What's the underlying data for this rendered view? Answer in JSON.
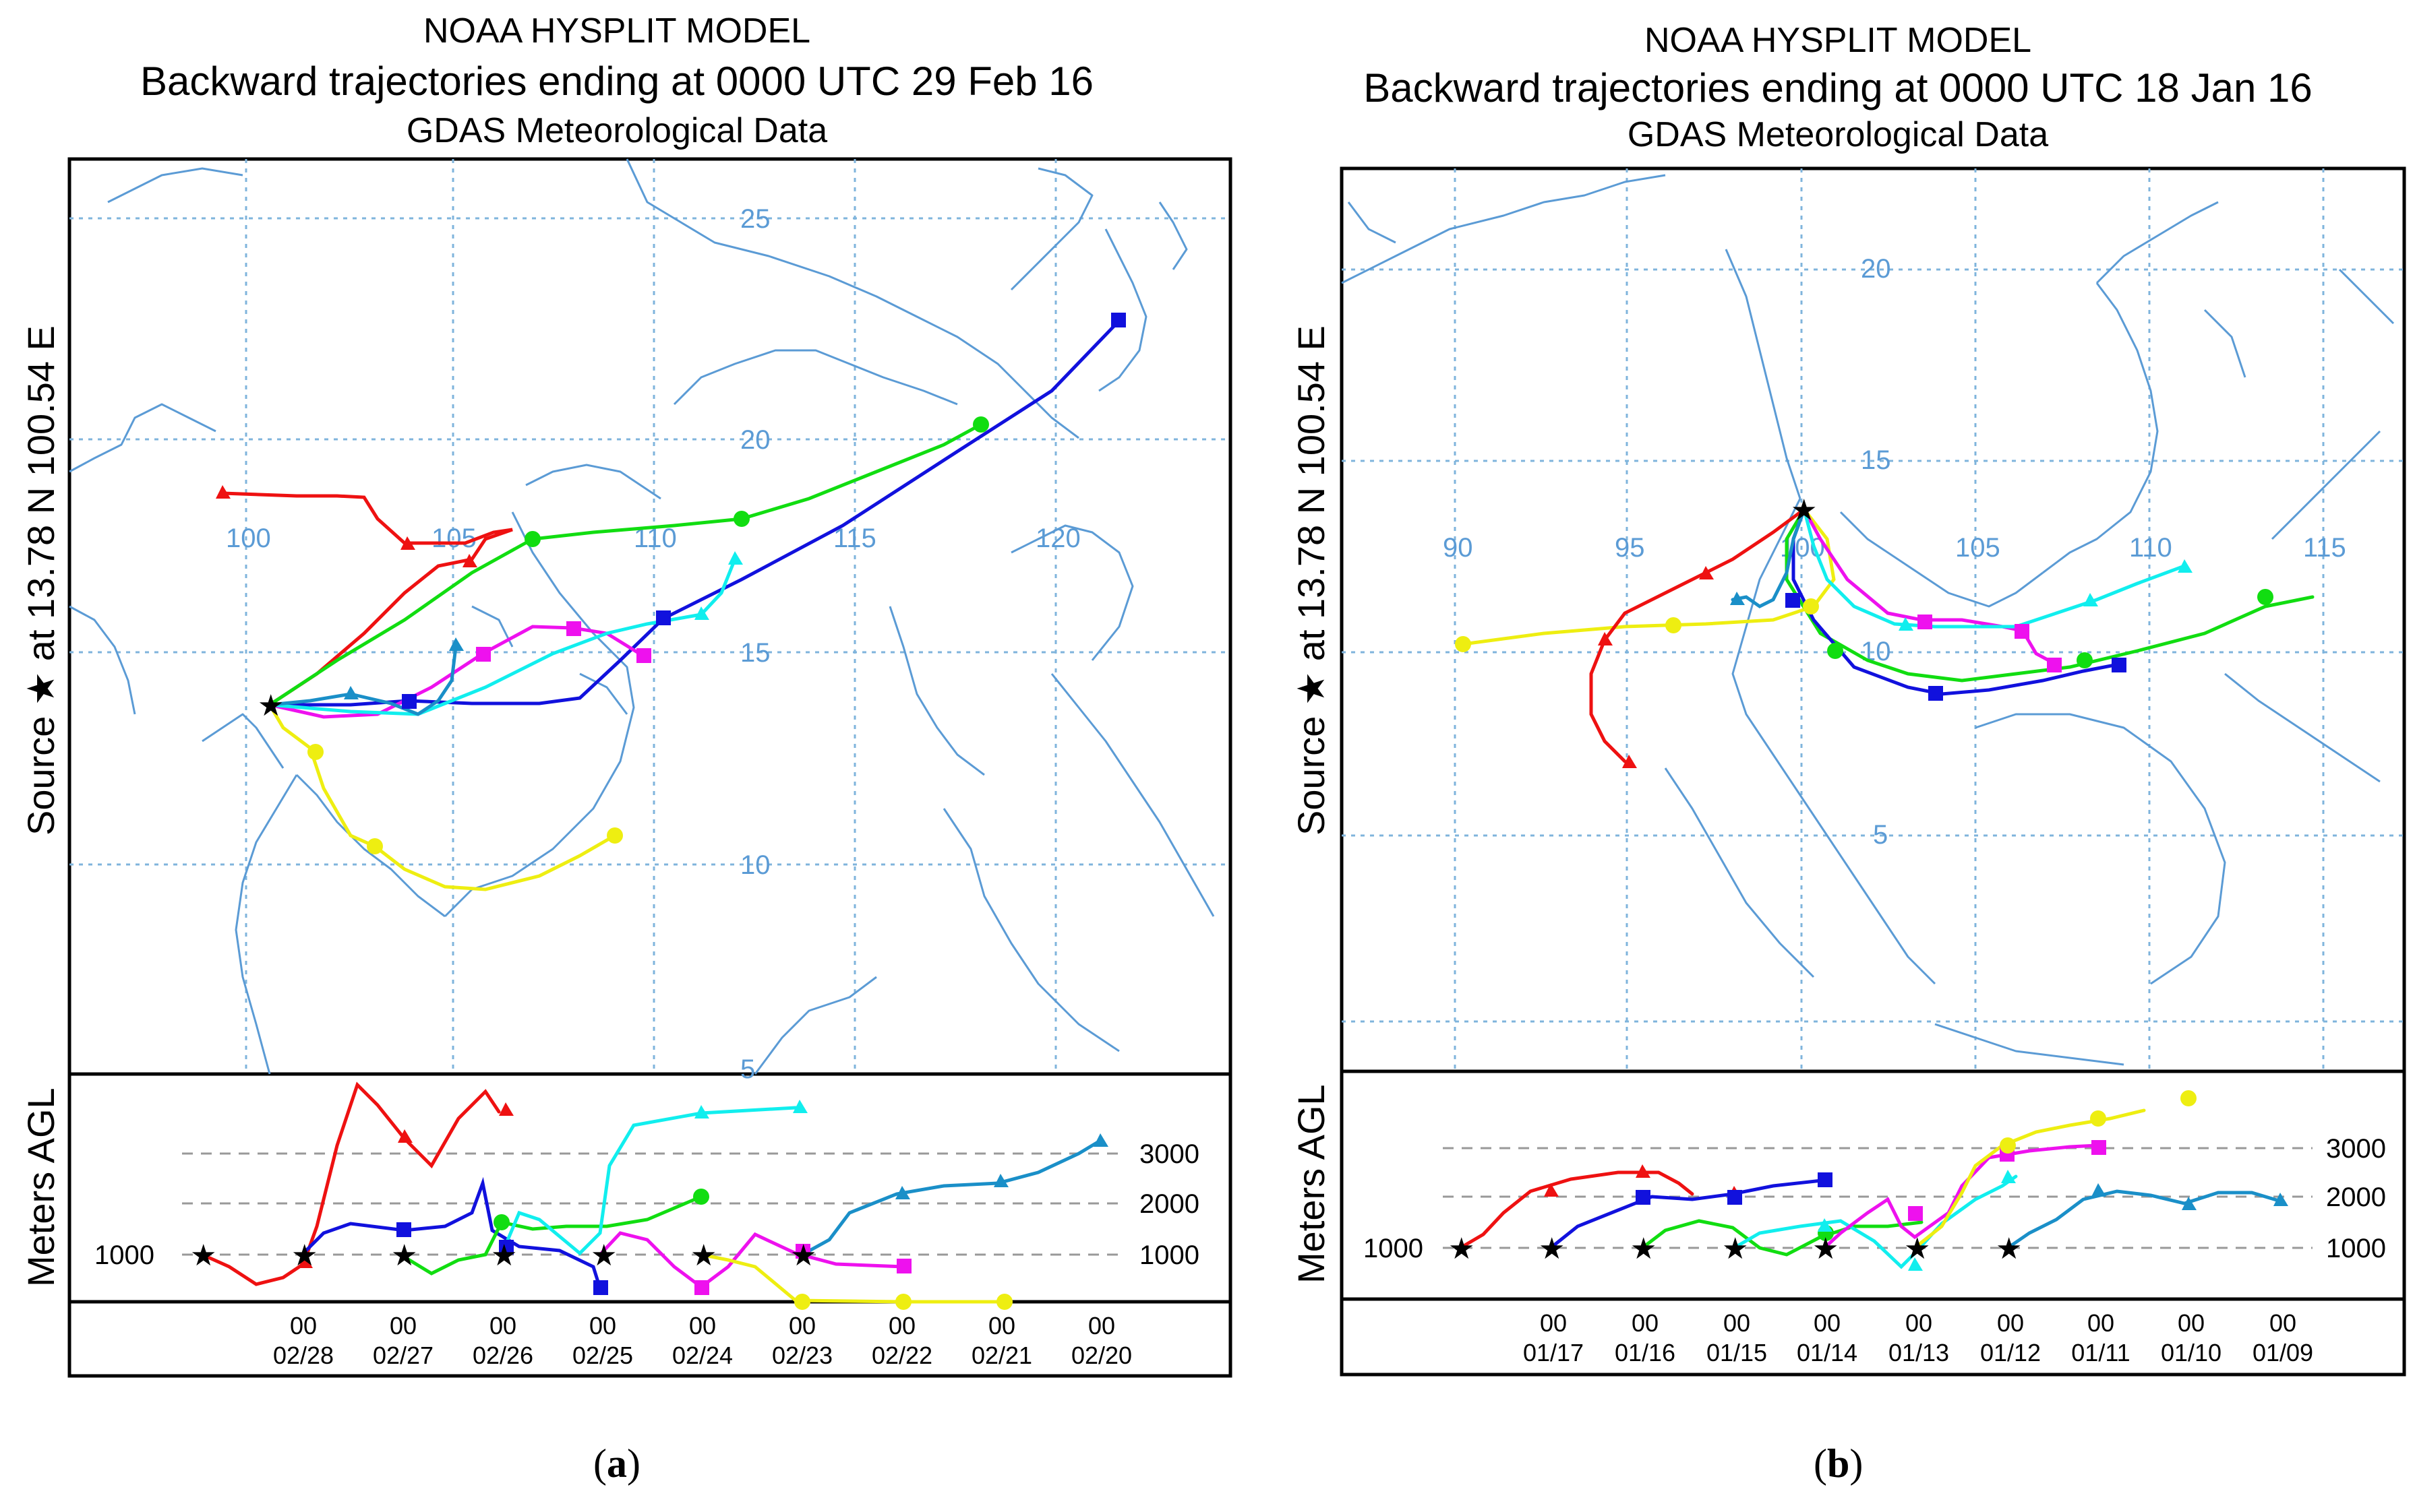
{
  "panels": [
    {
      "id": "a",
      "caption_letter": "a",
      "title": "NOAA HYSPLIT MODEL",
      "subtitle": "Backward trajectories ending at 0000 UTC 29 Feb 16",
      "data_source": "GDAS Meteorological Data",
      "source_label": "Source ★  at   13.78 N   100.54 E",
      "height_axis_label": "Meters AGL",
      "lon_labels": [
        "100",
        "105",
        "110",
        "115",
        "120"
      ],
      "lat_labels": [
        "25",
        "20",
        "15",
        "10",
        "5"
      ],
      "height_ticks_right": [
        "3000",
        "2000",
        "1000"
      ],
      "height_tick_left": "1000",
      "time_hours": [
        "00",
        "00",
        "00",
        "00",
        "00",
        "00",
        "00",
        "00",
        "00"
      ],
      "time_dates": [
        "02/28",
        "02/27",
        "02/26",
        "02/25",
        "02/24",
        "02/23",
        "02/22",
        "02/21",
        "02/20"
      ]
    },
    {
      "id": "b",
      "caption_letter": "b",
      "title": "NOAA HYSPLIT MODEL",
      "subtitle": "Backward trajectories ending at 0000 UTC 18 Jan 16",
      "data_source": "GDAS Meteorological Data",
      "source_label": "Source ★  at   13.78 N   100.54 E",
      "height_axis_label": "Meters AGL",
      "lon_labels": [
        "90",
        "95",
        "100",
        "105",
        "110",
        "115"
      ],
      "lat_labels": [
        "20",
        "15",
        "10",
        "5"
      ],
      "height_ticks_right": [
        "3000",
        "2000",
        "1000"
      ],
      "height_tick_left": "1000",
      "time_hours": [
        "00",
        "00",
        "00",
        "00",
        "00",
        "00",
        "00",
        "00",
        "00"
      ],
      "time_dates": [
        "01/17",
        "01/16",
        "01/15",
        "01/14",
        "01/13",
        "01/12",
        "01/11",
        "01/10",
        "01/09"
      ]
    }
  ],
  "colors": {
    "red": "#ee1111",
    "blue": "#1111dd",
    "green": "#11dd11",
    "magenta": "#ee11ee",
    "cyan": "#11eeee",
    "yellow": "#eeee11",
    "teal": "#1a8fc8",
    "coast": "#5b9bd5",
    "grid": "#7fb4dc"
  }
}
